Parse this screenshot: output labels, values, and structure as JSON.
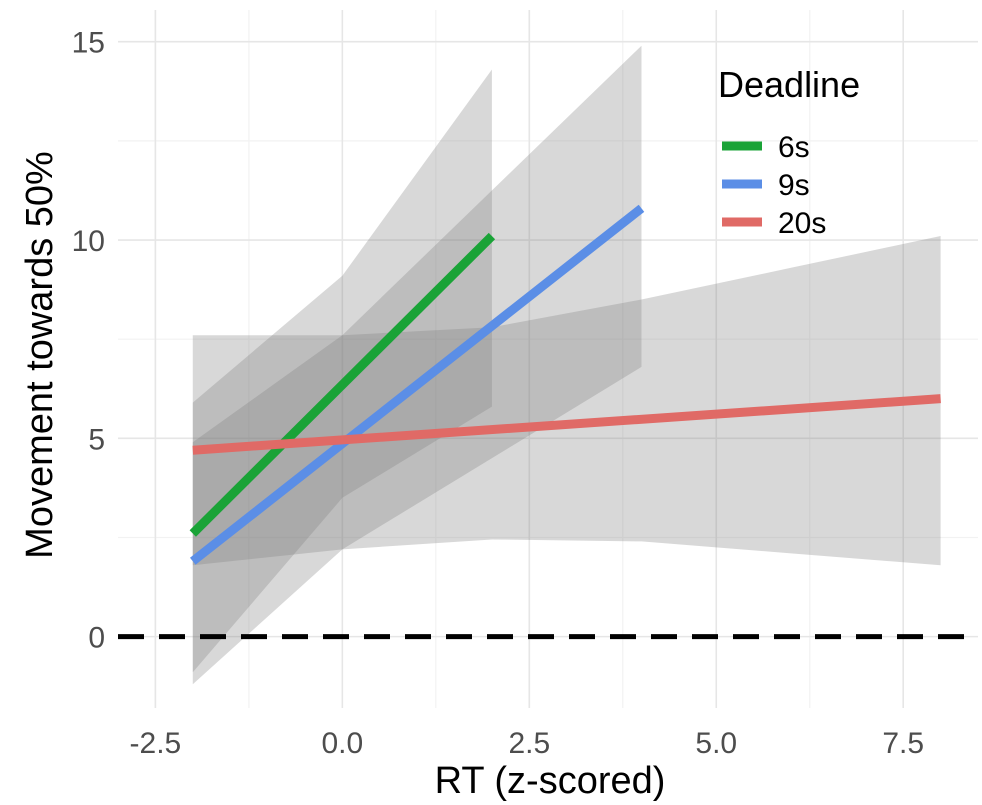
{
  "chart_data": {
    "type": "line",
    "xlabel": "RT (z-scored)",
    "ylabel": "Movement towards 50%",
    "xlim": [
      -3.0,
      8.5
    ],
    "ylim": [
      -1.8,
      15.8
    ],
    "x_ticks": [
      "-2.5",
      "0.0",
      "2.5",
      "5.0",
      "7.5"
    ],
    "y_ticks": [
      "0",
      "5",
      "10",
      "15"
    ],
    "grid": true,
    "reference_line": {
      "y": 0,
      "style": "dashed",
      "color": "#000000"
    },
    "legend": {
      "title": "Deadline",
      "position": "top-right",
      "entries": [
        "6s",
        "9s",
        "20s"
      ]
    },
    "series": [
      {
        "name": "6s",
        "color": "#1aa337",
        "x": [
          -2.0,
          2.0
        ],
        "y": [
          2.6,
          10.1
        ],
        "ribbon": {
          "x": [
            -2.0,
            0.0,
            2.0
          ],
          "lower": [
            -0.9,
            3.5,
            5.8
          ],
          "upper": [
            5.9,
            9.1,
            14.3
          ]
        }
      },
      {
        "name": "9s",
        "color": "#5b8ee6",
        "x": [
          -2.0,
          4.0
        ],
        "y": [
          1.9,
          10.8
        ],
        "ribbon": {
          "x": [
            -2.0,
            0.0,
            4.0
          ],
          "lower": [
            -1.2,
            2.2,
            6.8
          ],
          "upper": [
            4.9,
            7.6,
            14.9
          ]
        }
      },
      {
        "name": "20s",
        "color": "#e06a66",
        "x": [
          -2.0,
          8.0
        ],
        "y": [
          4.7,
          6.0
        ],
        "ribbon": {
          "x": [
            -2.0,
            0.0,
            2.0,
            4.0,
            6.0,
            8.0
          ],
          "lower": [
            1.8,
            2.2,
            2.45,
            2.4,
            2.1,
            1.8
          ],
          "upper": [
            7.6,
            7.6,
            7.8,
            8.5,
            9.3,
            10.1
          ]
        }
      }
    ]
  }
}
